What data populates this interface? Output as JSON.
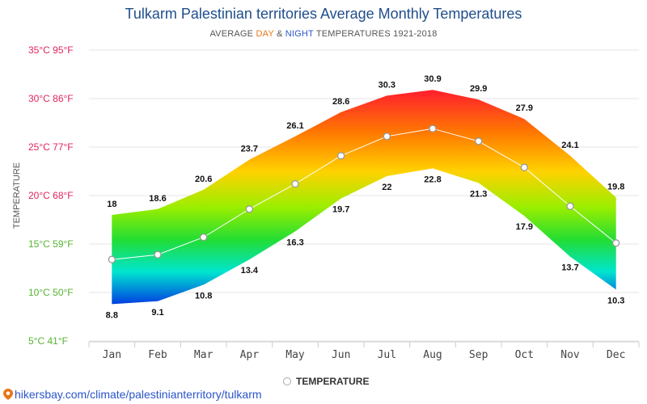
{
  "header": {
    "title": "Tulkarm Palestinian territories Average Monthly Temperatures",
    "subtitle_pre": "AVERAGE ",
    "subtitle_day": "DAY",
    "subtitle_and": " & ",
    "subtitle_night": "NIGHT",
    "subtitle_post": " TEMPERATURES 1921-2018"
  },
  "legend": {
    "label": "TEMPERATURE"
  },
  "footer": {
    "link_text": "hikersbay.com/climate/palestinianterritory/tulkarm"
  },
  "chart_data": {
    "type": "area",
    "ylabel": "TEMPERATURE",
    "ylim": [
      5,
      35
    ],
    "y_ticks": [
      {
        "value": 35,
        "label": "35°C 95°F",
        "color": "#e0245e"
      },
      {
        "value": 30,
        "label": "30°C 86°F",
        "color": "#e0245e"
      },
      {
        "value": 25,
        "label": "25°C 77°F",
        "color": "#e0245e"
      },
      {
        "value": 20,
        "label": "20°C 68°F",
        "color": "#e0245e"
      },
      {
        "value": 15,
        "label": "15°C 59°F",
        "color": "#55b52f"
      },
      {
        "value": 10,
        "label": "10°C 50°F",
        "color": "#55b52f"
      },
      {
        "value": 5,
        "label": "5°C 41°F",
        "color": "#55b52f"
      }
    ],
    "categories": [
      "Jan",
      "Feb",
      "Mar",
      "Apr",
      "May",
      "Jun",
      "Jul",
      "Aug",
      "Sep",
      "Oct",
      "Nov",
      "Dec"
    ],
    "series": [
      {
        "name": "day",
        "values": [
          18,
          18.6,
          20.6,
          23.7,
          26.1,
          28.6,
          30.3,
          30.9,
          29.9,
          27.9,
          24.1,
          19.8
        ]
      },
      {
        "name": "night",
        "values": [
          8.8,
          9.1,
          10.8,
          13.4,
          16.3,
          19.7,
          22,
          22.8,
          21.3,
          17.9,
          13.7,
          10.3
        ]
      },
      {
        "name": "TEMPERATURE",
        "values": [
          13.4,
          13.9,
          15.7,
          18.6,
          21.2,
          24.1,
          26.1,
          26.9,
          25.6,
          22.9,
          18.9,
          15.1
        ]
      }
    ],
    "grid": true,
    "legend_position": "bottom-center"
  }
}
